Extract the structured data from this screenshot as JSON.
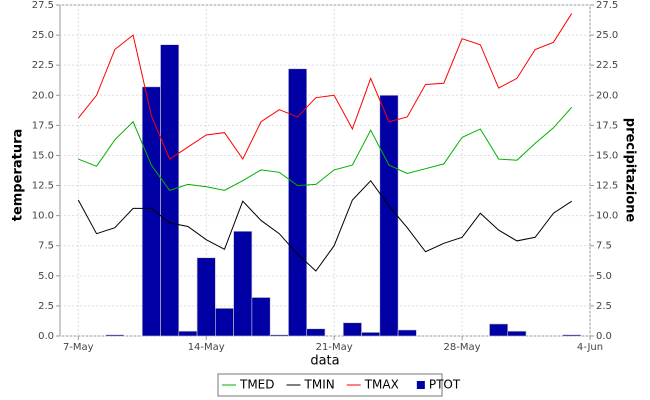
{
  "chart_data": {
    "type": "combo",
    "x_label": "data",
    "y_label": "temperatura",
    "y2_label": "precipitazione",
    "x": [
      "7-May",
      "8-May",
      "9-May",
      "10-May",
      "11-May",
      "12-May",
      "13-May",
      "14-May",
      "15-May",
      "16-May",
      "17-May",
      "18-May",
      "19-May",
      "20-May",
      "21-May",
      "22-May",
      "23-May",
      "24-May",
      "25-May",
      "26-May",
      "27-May",
      "28-May",
      "29-May",
      "30-May",
      "31-May",
      "1-Jun",
      "2-Jun",
      "3-Jun"
    ],
    "xlim": [
      "6-May",
      "4-Jun"
    ],
    "xticks": [
      "7-May",
      "14-May",
      "21-May",
      "28-May",
      "4-Jun"
    ],
    "ylim": [
      0,
      27.5
    ],
    "yticks": [
      {
        "value": 0,
        "label": "0.0"
      },
      2.5,
      {
        "value": 5,
        "label": "5.0"
      },
      7.5,
      {
        "value": 10,
        "label": "10.0"
      },
      12.5,
      {
        "value": 15,
        "label": "15.0"
      },
      17.5,
      {
        "value": 20,
        "label": "20.0"
      },
      22.5,
      {
        "value": 25,
        "label": "25.0"
      },
      27.5
    ],
    "y2lim": [
      0,
      27.5
    ],
    "y2ticks": [
      {
        "value": 0,
        "label": "0.0"
      },
      2.5,
      {
        "value": 5,
        "label": "5.0"
      },
      7.5,
      {
        "value": 10,
        "label": "10.0"
      },
      12.5,
      {
        "value": 15,
        "label": "15.0"
      },
      17.5,
      {
        "value": 20,
        "label": "20.0"
      },
      22.5,
      {
        "value": 25,
        "label": "25.0"
      },
      27.5
    ],
    "grid": true,
    "legend": "bottom",
    "series": [
      {
        "name": "TMED",
        "type": "line",
        "color": "#00b000",
        "values": [
          14.7,
          14.1,
          16.3,
          17.8,
          14.2,
          12.1,
          12.6,
          12.4,
          12.1,
          12.9,
          13.8,
          13.6,
          12.5,
          12.6,
          13.8,
          14.2,
          17.1,
          14.2,
          13.5,
          13.9,
          14.3,
          16.5,
          17.2,
          14.7,
          14.6,
          16.0,
          17.3,
          19.0
        ]
      },
      {
        "name": "TMIN",
        "type": "line",
        "color": "#000000",
        "values": [
          11.3,
          8.5,
          9.0,
          10.6,
          10.6,
          9.4,
          9.1,
          8.0,
          7.2,
          11.2,
          9.6,
          8.5,
          6.8,
          5.4,
          7.5,
          11.3,
          12.9,
          10.8,
          9.0,
          7.0,
          7.7,
          8.2,
          10.2,
          8.8,
          7.9,
          8.2,
          10.2,
          11.2
        ]
      },
      {
        "name": "TMAX",
        "type": "line",
        "color": "#ff0000",
        "values": [
          18.1,
          20.0,
          23.8,
          25.0,
          18.3,
          14.7,
          15.7,
          16.7,
          16.9,
          14.7,
          17.8,
          18.8,
          18.2,
          19.8,
          20.0,
          17.2,
          21.4,
          17.8,
          18.2,
          20.9,
          21.0,
          24.7,
          24.2,
          20.6,
          21.4,
          23.8,
          24.4,
          26.8
        ]
      },
      {
        "name": "PTOT",
        "type": "bar",
        "axis": "y2",
        "color": "#0000a4",
        "values": [
          0,
          0,
          0.1,
          0,
          20.7,
          24.2,
          0.4,
          6.5,
          2.3,
          8.7,
          3.2,
          0.1,
          22.2,
          0.6,
          0,
          1.1,
          0.3,
          20.0,
          0.5,
          0,
          0,
          0,
          0,
          1.0,
          0.4,
          0,
          0,
          0.1
        ]
      }
    ]
  }
}
